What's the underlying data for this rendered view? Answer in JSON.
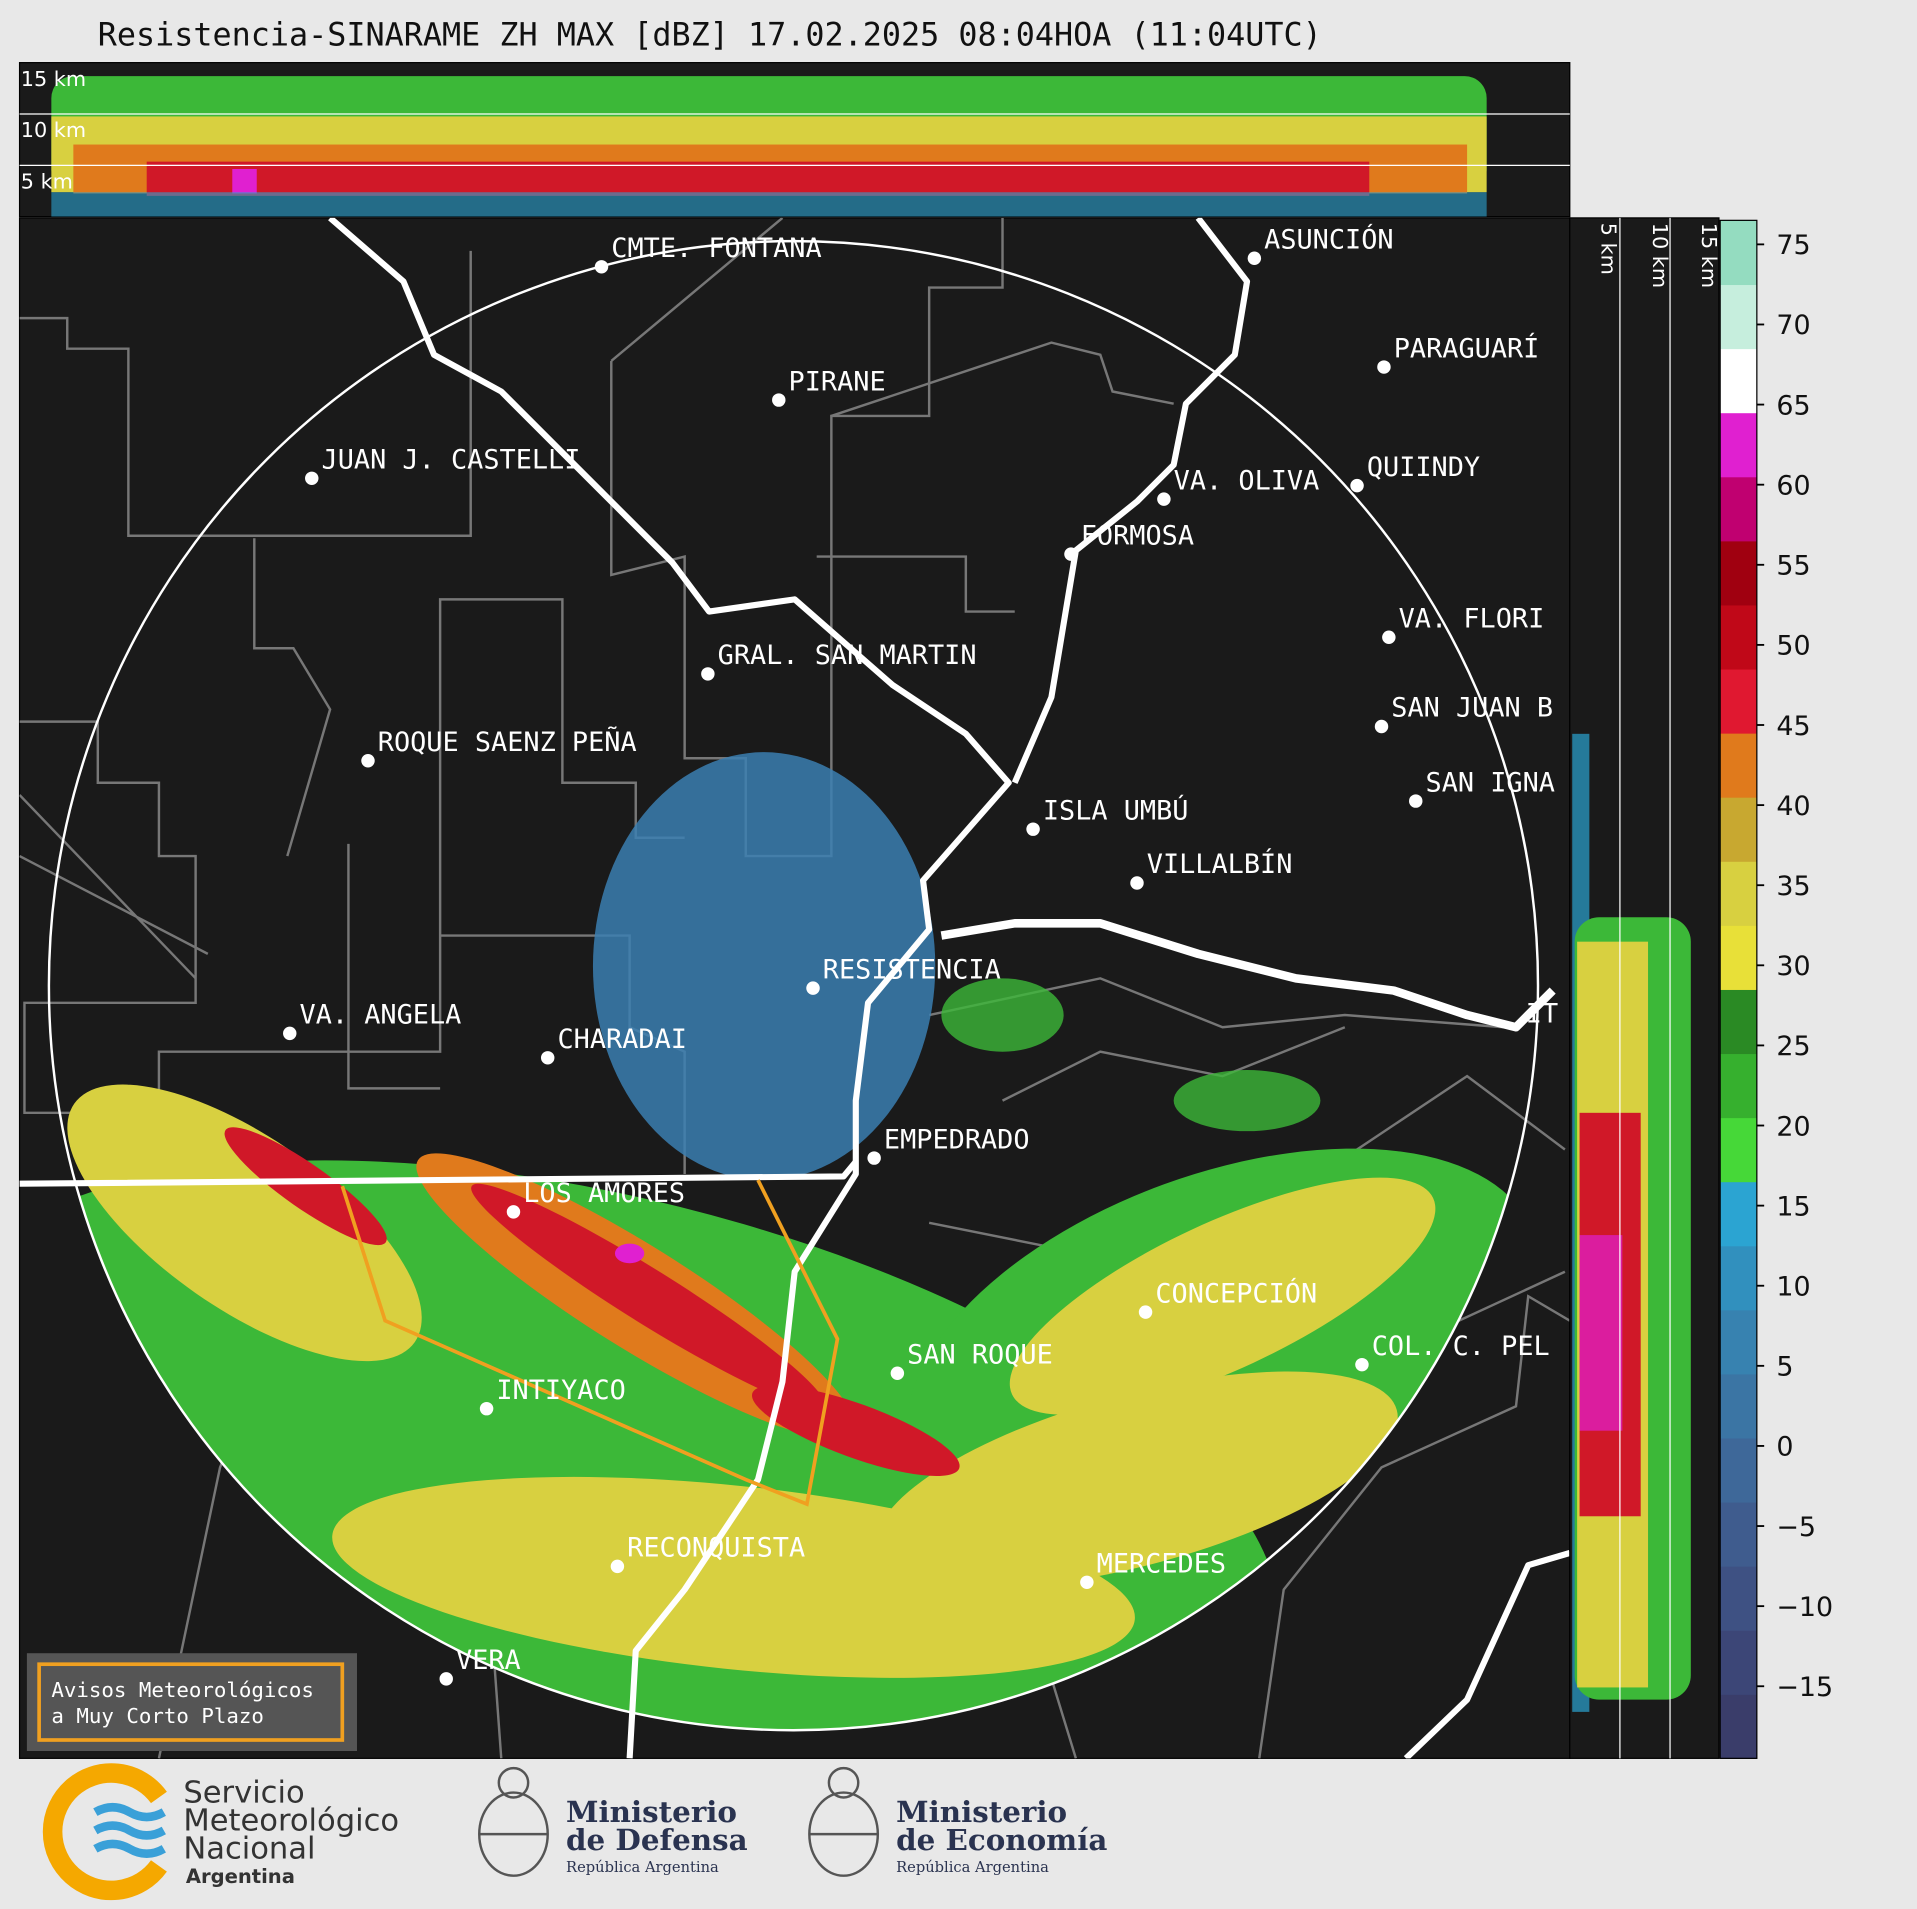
{
  "header": {
    "title": "Resistencia-SINARAME ZH MAX [dBZ] 17.02.2025 08:04HOA (11:04UTC)"
  },
  "cross_section_top": {
    "labels": [
      "15 km",
      "10 km",
      "5 km"
    ]
  },
  "cross_section_right": {
    "labels": [
      "5 km",
      "10 km",
      "15 km"
    ]
  },
  "map": {
    "cities": [
      "CMTE. FONTANA",
      "PIRANE",
      "JUAN J. CASTELLI",
      "ASUNCIÓN",
      "PARAGUARÍ",
      "QUIINDY",
      "VA. OLIVA",
      "FORMOSA",
      "GRAL. SAN MARTIN",
      "ROQUE SAENZ PEÑA",
      "VA. FLORI",
      "SAN JUAN B",
      "SAN IGNA",
      "ISLA UMBÚ",
      "VILLALBÍN",
      "RESISTENCIA",
      "IT",
      "VA. ANGELA",
      "CHARADAI",
      "EMPEDRADO",
      "LOS AMORES",
      "CONCEPCIÓN",
      "COL. C. PEL",
      "SAN ROQUE",
      "INTIYACO",
      "RECONQUISTA",
      "MERCEDES",
      "VERA"
    ]
  },
  "notice": {
    "lines": [
      "Avisos Meteorológicos",
      "a Muy Corto Plazo"
    ]
  },
  "colorbar": {
    "lim": [
      -19.5,
      76.5
    ],
    "ticks": [
      75,
      70,
      65,
      60,
      55,
      50,
      45,
      40,
      35,
      30,
      25,
      20,
      15,
      10,
      5,
      0,
      {
        "value": -5,
        "label": "−5"
      },
      {
        "value": -10,
        "label": "−10"
      },
      {
        "value": -15,
        "label": "−15"
      }
    ],
    "colors": [
      "#3a3d6a",
      "#3c4677",
      "#3e5183",
      "#3f5c8e",
      "#3e6899",
      "#3b75a4",
      "#3782b0",
      "#3190be",
      "#2ba4d2",
      "#46d838",
      "#36b02e",
      "#2a8a24",
      "#e8e038",
      "#d8d040",
      "#c8a830",
      "#e07a1c",
      "#e01830",
      "#c00818",
      "#a00010",
      "#c00070",
      "#e020d0",
      "#ffffff",
      "#c6eedd",
      "#94dcc0"
    ]
  },
  "footer": {
    "logos": [
      {
        "lines": [
          "Servicio",
          "Meteorológico",
          "Nacional",
          "Argentina"
        ]
      },
      {
        "lines": [
          "Ministerio",
          "de Defensa",
          "República Argentina"
        ]
      },
      {
        "lines": [
          "Ministerio",
          "de Economía",
          "República Argentina"
        ]
      }
    ]
  }
}
